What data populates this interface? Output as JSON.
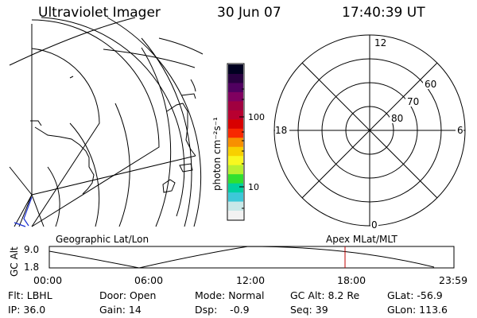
{
  "header": {
    "title": "Ultraviolet Imager",
    "date": "30 Jun 07",
    "time": "17:40:39 UT"
  },
  "colorbar": {
    "unit_label": "photon cm⁻²s⁻¹",
    "ticks": [
      "100",
      "10"
    ],
    "colors": [
      "#f2f2f2",
      "#c8e8e8",
      "#3cc8d8",
      "#00d0a0",
      "#30e030",
      "#b8f030",
      "#f8f820",
      "#f8d000",
      "#f89000",
      "#f82800",
      "#d80000",
      "#b80030",
      "#a00040",
      "#800060",
      "#500060",
      "#280040",
      "#000020"
    ]
  },
  "polar_plot": {
    "mlt_labels": [
      "12",
      "18",
      "6",
      "0"
    ],
    "lat_labels": [
      "60",
      "70",
      "80"
    ]
  },
  "timeline": {
    "left_label": "Geographic Lat/Lon",
    "right_label": "Apex MLat/MLT",
    "axis_title": "GC Alt",
    "alt_max": "9.0",
    "alt_min": "1.8",
    "time_ticks": [
      "00:00",
      "06:00",
      "12:00",
      "18:00",
      "23:59"
    ],
    "marker_color": "#c00000"
  },
  "footer": {
    "flt": "Flt: LBHL",
    "ip": "IP: 36.0",
    "door": "Door: Open",
    "gain": "Gain: 14",
    "mode": "Mode: Normal",
    "dsp": "Dsp:    -0.9",
    "gc_alt": "GC Alt: 8.2 Re",
    "seq": "Seq: 39",
    "glat": "GLat: -56.9",
    "glon": "GLon: 113.6"
  }
}
